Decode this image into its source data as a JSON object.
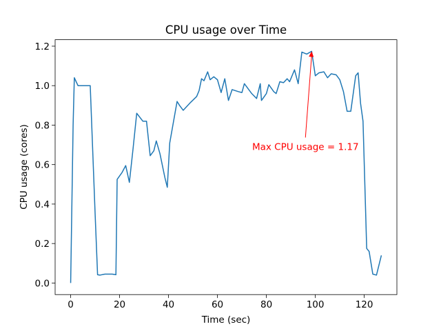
{
  "chart_data": {
    "type": "line",
    "title": "CPU usage over Time",
    "xlabel": "Time (sec)",
    "ylabel": "CPU usage (cores)",
    "x": [
      0,
      1,
      1.5,
      3,
      8,
      10,
      11,
      12,
      14,
      17,
      18.5,
      19,
      21,
      22.5,
      24,
      25.5,
      27,
      29.5,
      31,
      32.5,
      34,
      35,
      36.5,
      38.5,
      39.5,
      40.5,
      42,
      43.5,
      44.5,
      46,
      49,
      51.5,
      52.5,
      53.5,
      54.5,
      56,
      57,
      58.5,
      60,
      61.5,
      63,
      64.5,
      66,
      68.5,
      70,
      71,
      74,
      76,
      77.5,
      78,
      80,
      81,
      83,
      84,
      85.5,
      87,
      88.5,
      89.5,
      91.5,
      93,
      94.5,
      96.5,
      98.5,
      100,
      101.5,
      103.5,
      105,
      106.5,
      108.5,
      110,
      111.5,
      113,
      114.5,
      116.5,
      117.5,
      118.5,
      119.5,
      121,
      122,
      123.5,
      125,
      127
    ],
    "values": [
      0,
      0.8,
      1.04,
      1.0,
      1.0,
      0.35,
      0.042,
      0.04,
      0.045,
      0.045,
      0.042,
      0.525,
      0.56,
      0.595,
      0.51,
      0.68,
      0.86,
      0.82,
      0.82,
      0.645,
      0.67,
      0.72,
      0.655,
      0.535,
      0.485,
      0.71,
      0.815,
      0.92,
      0.9,
      0.875,
      0.915,
      0.945,
      0.975,
      1.035,
      1.025,
      1.07,
      1.03,
      1.045,
      1.03,
      0.965,
      1.035,
      0.925,
      0.98,
      0.97,
      0.965,
      1.01,
      0.96,
      0.935,
      1.01,
      0.925,
      0.96,
      1.005,
      0.97,
      0.96,
      1.02,
      1.015,
      1.035,
      1.02,
      1.08,
      1.01,
      1.17,
      1.16,
      1.174,
      1.05,
      1.065,
      1.07,
      1.04,
      1.06,
      1.055,
      1.03,
      0.97,
      0.87,
      0.87,
      1.05,
      1.065,
      0.91,
      0.82,
      0.175,
      0.16,
      0.045,
      0.04,
      0.14
    ],
    "color": "#1f77b4",
    "xlim": [
      -6.35,
      133.35
    ],
    "xticks": [
      0,
      20,
      40,
      60,
      80,
      100,
      120
    ],
    "ylim": [
      -0.0587,
      1.2327
    ],
    "yticks": [
      {
        "value": 0,
        "label": "0.0"
      },
      0.2,
      0.4,
      0.6,
      0.8,
      {
        "value": 1,
        "label": "1.0"
      },
      1.2
    ],
    "annotation": {
      "text": "Max CPU usage = 1.17",
      "color": "red"
    }
  }
}
